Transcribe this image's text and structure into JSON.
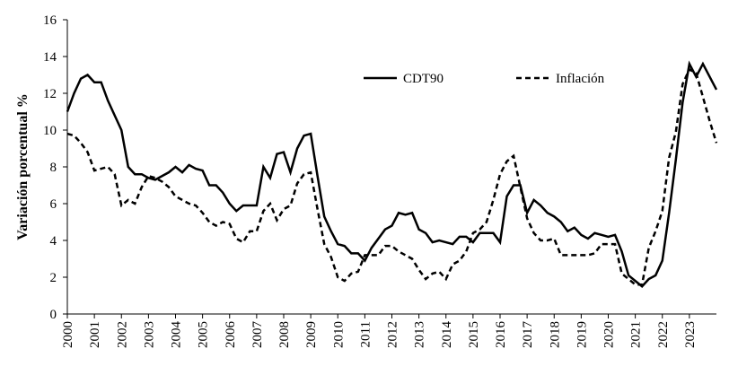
{
  "chart_data": {
    "type": "line",
    "ylabel": "Variación porcentual %",
    "legend": "upper right",
    "xlim": [
      2000,
      2024
    ],
    "ylim": [
      0,
      16
    ],
    "yticks": [
      0,
      2,
      4,
      6,
      8,
      10,
      12,
      14,
      16
    ],
    "xticks": [
      2000,
      2001,
      2002,
      2003,
      2004,
      2005,
      2006,
      2007,
      2008,
      2009,
      2010,
      2011,
      2012,
      2013,
      2014,
      2015,
      2016,
      2017,
      2018,
      2019,
      2020,
      2021,
      2022,
      2023
    ],
    "x": [
      2000,
      2000.25,
      2000.5,
      2000.75,
      2001,
      2001.25,
      2001.5,
      2001.75,
      2002,
      2002.25,
      2002.5,
      2002.75,
      2003,
      2003.25,
      2003.5,
      2003.75,
      2004,
      2004.25,
      2004.5,
      2004.75,
      2005,
      2005.25,
      2005.5,
      2005.75,
      2006,
      2006.25,
      2006.5,
      2006.75,
      2007,
      2007.25,
      2007.5,
      2007.75,
      2008,
      2008.25,
      2008.5,
      2008.75,
      2009,
      2009.25,
      2009.5,
      2009.75,
      2010,
      2010.25,
      2010.5,
      2010.75,
      2011,
      2011.25,
      2011.5,
      2011.75,
      2012,
      2012.25,
      2012.5,
      2012.75,
      2013,
      2013.25,
      2013.5,
      2013.75,
      2014,
      2014.25,
      2014.5,
      2014.75,
      2015,
      2015.25,
      2015.5,
      2015.75,
      2016,
      2016.25,
      2016.5,
      2016.75,
      2017,
      2017.25,
      2017.5,
      2017.75,
      2018,
      2018.25,
      2018.5,
      2018.75,
      2019,
      2019.25,
      2019.5,
      2019.75,
      2020,
      2020.25,
      2020.5,
      2020.75,
      2021,
      2021.25,
      2021.5,
      2021.75,
      2022,
      2022.25,
      2022.5,
      2022.75,
      2023,
      2023.25,
      2023.5,
      2023.75,
      2024
    ],
    "series": [
      {
        "name": "CDT90",
        "color": "#000000",
        "linestyle": "solid",
        "values": [
          11.0,
          12.0,
          12.8,
          13.0,
          12.6,
          12.6,
          11.6,
          10.8,
          10.0,
          8.0,
          7.6,
          7.6,
          7.4,
          7.3,
          7.5,
          7.7,
          8.0,
          7.7,
          8.1,
          7.9,
          7.8,
          7.0,
          7.0,
          6.6,
          6.0,
          5.6,
          5.9,
          5.9,
          5.9,
          8.0,
          7.4,
          8.7,
          8.8,
          7.7,
          9.0,
          9.7,
          9.8,
          7.5,
          5.3,
          4.5,
          3.8,
          3.7,
          3.3,
          3.3,
          2.9,
          3.6,
          4.1,
          4.6,
          4.8,
          5.5,
          5.4,
          5.5,
          4.6,
          4.4,
          3.9,
          4.0,
          3.9,
          3.8,
          4.2,
          4.2,
          3.9,
          4.4,
          4.4,
          4.4,
          3.9,
          6.4,
          7.0,
          7.0,
          5.5,
          6.2,
          5.9,
          5.5,
          5.3,
          5.0,
          4.5,
          4.7,
          4.3,
          4.1,
          4.4,
          4.3,
          4.2,
          4.3,
          3.4,
          2.1,
          1.8,
          1.5,
          1.9,
          2.1,
          2.9,
          5.5,
          8.4,
          11.5,
          13.6,
          12.9,
          13.6,
          12.9,
          12.2
        ]
      },
      {
        "name": "Inflación",
        "color": "#000000",
        "linestyle": "dashed",
        "values": [
          9.8,
          9.7,
          9.3,
          8.8,
          7.8,
          7.9,
          8.0,
          7.6,
          5.9,
          6.2,
          6.0,
          6.9,
          7.5,
          7.4,
          7.2,
          6.9,
          6.4,
          6.2,
          6.0,
          5.9,
          5.5,
          5.0,
          4.8,
          5.0,
          4.9,
          4.1,
          3.9,
          4.5,
          4.5,
          5.6,
          6.0,
          5.1,
          5.7,
          5.9,
          7.1,
          7.6,
          7.7,
          5.7,
          3.8,
          3.1,
          2.0,
          1.8,
          2.2,
          2.3,
          3.2,
          3.2,
          3.2,
          3.7,
          3.7,
          3.4,
          3.2,
          3.0,
          2.4,
          1.9,
          2.2,
          2.3,
          1.9,
          2.7,
          2.9,
          3.4,
          4.4,
          4.6,
          5.0,
          6.2,
          7.6,
          8.3,
          8.6,
          6.9,
          5.2,
          4.4,
          4.0,
          4.0,
          4.1,
          3.2,
          3.2,
          3.2,
          3.2,
          3.2,
          3.3,
          3.8,
          3.8,
          3.8,
          2.2,
          1.9,
          1.6,
          1.6,
          3.6,
          4.5,
          5.6,
          8.5,
          9.9,
          12.5,
          13.3,
          13.1,
          11.8,
          10.5,
          9.3
        ]
      }
    ]
  }
}
